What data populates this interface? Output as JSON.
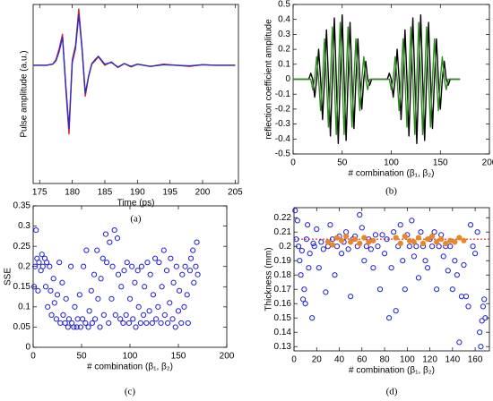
{
  "chart_data": [
    {
      "type": "line",
      "caption": "(a)",
      "x_label": "Time (ps)",
      "y_label": "Pulse amplitude (a.u.)",
      "xlim": [
        174,
        205.5
      ],
      "ylim": [
        -2.1,
        1.08
      ],
      "xticks": [
        175,
        180,
        185,
        190,
        195,
        200,
        205
      ],
      "x": [
        174,
        175,
        176,
        177,
        177.5,
        178,
        178.5,
        179,
        179.5,
        180,
        180.5,
        181,
        181.5,
        182,
        182.5,
        183,
        183.5,
        184,
        185,
        186,
        187,
        188,
        189,
        190,
        192,
        194,
        196,
        198,
        200,
        202,
        204,
        205
      ],
      "series": [
        {
          "color": "#d62728",
          "values": [
            0,
            0,
            0,
            0.02,
            0.1,
            0.3,
            0.55,
            -0.4,
            -1.22,
            0.1,
            0.35,
            1.0,
            0.3,
            -0.55,
            -0.2,
            0.02,
            0.08,
            0.15,
            0.0,
            0.06,
            -0.04,
            0.03,
            -0.03,
            0.02,
            -0.02,
            0.02,
            0,
            -0.02,
            0.01,
            0,
            0,
            0
          ]
        },
        {
          "color": "#2b2bc8",
          "values": [
            0,
            0,
            0,
            0.02,
            0.08,
            0.25,
            0.5,
            -0.35,
            -1.12,
            0.05,
            0.3,
            0.9,
            0.3,
            -0.5,
            -0.2,
            0.03,
            0.1,
            0.16,
            0.02,
            0.05,
            -0.03,
            0.03,
            -0.02,
            0.02,
            -0.02,
            0.01,
            0,
            -0.01,
            0.01,
            0,
            0,
            0
          ]
        }
      ]
    },
    {
      "type": "line",
      "caption": "(b)",
      "x_label": "# combination (β₁, β₂)",
      "y_label": "reflection coefficient amplitude",
      "xlim": [
        0,
        200
      ],
      "ylim": [
        -0.5,
        0.5
      ],
      "xticks": [
        0,
        50,
        100,
        150,
        200
      ],
      "yticks": [
        -0.5,
        -0.4,
        -0.3,
        -0.2,
        -0.1,
        0,
        0.1,
        0.2,
        0.3,
        0.4,
        0.5
      ],
      "x": [
        0,
        2,
        4,
        6,
        8,
        10,
        12,
        14,
        16,
        18,
        20,
        22,
        24,
        26,
        28,
        30,
        32,
        34,
        36,
        38,
        40,
        42,
        44,
        46,
        48,
        50,
        52,
        54,
        56,
        58,
        60,
        62,
        64,
        66,
        68,
        70,
        72,
        74,
        76,
        78,
        80,
        82,
        84,
        86,
        88,
        90,
        92,
        94,
        96,
        98,
        100,
        102,
        104,
        106,
        108,
        110,
        112,
        114,
        116,
        118,
        120,
        122,
        124,
        126,
        128,
        130,
        132,
        134,
        136,
        138,
        140,
        142,
        144,
        146,
        148,
        150,
        152,
        154,
        156,
        158,
        160,
        162,
        164,
        166,
        168,
        170
      ],
      "series": [
        {
          "color": "#000000",
          "values": [
            0,
            0,
            0,
            0,
            0,
            0,
            0,
            0,
            0,
            0.04,
            0,
            -0.12,
            0,
            0.2,
            0,
            -0.27,
            0,
            0.33,
            0,
            -0.38,
            0,
            0.41,
            0,
            -0.43,
            0,
            0.43,
            0,
            -0.41,
            0,
            0.38,
            0,
            -0.33,
            0,
            0.27,
            0,
            -0.2,
            0,
            0.12,
            0,
            -0.04,
            0,
            0,
            0,
            0,
            0,
            0,
            0,
            0,
            0,
            0.04,
            0,
            -0.12,
            0,
            0.2,
            0,
            -0.27,
            0,
            0.33,
            0,
            -0.38,
            0,
            0.41,
            0,
            -0.43,
            0,
            0.43,
            0,
            -0.41,
            0,
            0.38,
            0,
            -0.33,
            0,
            0.27,
            0,
            -0.2,
            0,
            0.12,
            0,
            -0.04,
            0,
            0,
            0,
            0,
            0,
            0
          ]
        },
        {
          "color": "#2e8b1e",
          "values": [
            0,
            0,
            0,
            0,
            0,
            0,
            0,
            0,
            0,
            0,
            -0.07,
            0,
            0.15,
            0,
            -0.21,
            0,
            0.27,
            0,
            -0.32,
            0,
            0.35,
            0,
            -0.37,
            0,
            0.38,
            0,
            -0.37,
            0,
            0.35,
            0,
            -0.32,
            0,
            0.27,
            0,
            -0.21,
            0,
            0.15,
            0,
            -0.07,
            0,
            0,
            0,
            0,
            0,
            0,
            0,
            0,
            0,
            0,
            0,
            -0.07,
            0,
            0.15,
            0,
            -0.21,
            0,
            0.27,
            0,
            -0.32,
            0,
            0.35,
            0,
            -0.37,
            0,
            0.38,
            0,
            -0.37,
            0,
            0.35,
            0,
            -0.32,
            0,
            0.27,
            0,
            -0.21,
            0,
            0.15,
            0,
            -0.07,
            0,
            0,
            0,
            0,
            0,
            0,
            0
          ]
        }
      ]
    },
    {
      "type": "scatter",
      "caption": "(c)",
      "x_label": "# combination (β₁, β₂)",
      "y_label": "SSE",
      "xlim": [
        0,
        200
      ],
      "ylim": [
        0,
        0.35
      ],
      "xticks": [
        0,
        50,
        100,
        150,
        200
      ],
      "yticks": [
        0,
        0.05,
        0.1,
        0.15,
        0.2,
        0.25,
        0.3,
        0.35
      ],
      "series": [
        {
          "color": "#1f1fd6",
          "x": [
            1,
            2,
            3,
            4,
            5,
            6,
            8,
            9,
            10,
            12,
            13,
            14,
            15,
            17,
            18,
            19,
            21,
            22,
            24,
            25,
            27,
            28,
            30,
            31,
            33,
            34,
            36,
            37,
            39,
            40,
            42,
            43,
            45,
            46,
            48,
            49,
            51,
            52,
            54,
            55,
            57,
            58,
            60,
            61,
            63,
            64,
            66,
            67,
            69,
            70,
            72,
            73,
            75,
            76,
            78,
            79,
            81,
            82,
            84,
            85,
            87,
            88,
            90,
            91,
            93,
            94,
            96,
            97,
            99,
            100,
            102,
            103,
            105,
            106,
            108,
            109,
            111,
            112,
            114,
            115,
            117,
            118,
            120,
            121,
            123,
            124,
            126,
            127,
            129,
            130,
            132,
            133,
            135,
            136,
            138,
            139,
            141,
            142,
            144,
            145,
            147,
            148,
            150,
            151,
            153,
            154,
            156,
            157,
            159,
            160,
            162,
            163,
            165,
            166,
            168,
            169,
            170
          ],
          "values": [
            0.15,
            0.2,
            0.29,
            0.22,
            0.14,
            0.21,
            0.19,
            0.23,
            0.2,
            0.22,
            0.15,
            0.21,
            0.1,
            0.2,
            0.14,
            0.08,
            0.17,
            0.11,
            0.07,
            0.13,
            0.21,
            0.06,
            0.16,
            0.08,
            0.06,
            0.12,
            0.05,
            0.07,
            0.2,
            0.06,
            0.05,
            0.1,
            0.05,
            0.07,
            0.13,
            0.05,
            0.07,
            0.2,
            0.06,
            0.24,
            0.05,
            0.09,
            0.14,
            0.06,
            0.18,
            0.07,
            0.24,
            0.12,
            0.05,
            0.17,
            0.22,
            0.08,
            0.28,
            0.21,
            0.06,
            0.26,
            0.12,
            0.2,
            0.29,
            0.08,
            0.27,
            0.18,
            0.07,
            0.15,
            0.06,
            0.19,
            0.08,
            0.21,
            0.06,
            0.12,
            0.2,
            0.07,
            0.16,
            0.05,
            0.19,
            0.1,
            0.06,
            0.2,
            0.08,
            0.15,
            0.06,
            0.21,
            0.09,
            0.18,
            0.06,
            0.13,
            0.22,
            0.07,
            0.1,
            0.21,
            0.06,
            0.15,
            0.24,
            0.08,
            0.19,
            0.06,
            0.11,
            0.22,
            0.07,
            0.16,
            0.05,
            0.2,
            0.09,
            0.14,
            0.06,
            0.18,
            0.1,
            0.2,
            0.13,
            0.06,
            0.19,
            0.22,
            0.24,
            0.16,
            0.2,
            0.26,
            0.18
          ]
        }
      ]
    },
    {
      "type": "scatter",
      "caption": "(d)",
      "x_label": "# combination (β₁, β₂)",
      "y_label": "Thickness (mm)",
      "xlim": [
        0,
        172.6
      ],
      "ylim": [
        0.127,
        0.227
      ],
      "xticks": [
        0,
        20,
        40,
        60,
        80,
        100,
        120,
        140,
        160
      ],
      "yticks": [
        0.13,
        0.14,
        0.15,
        0.16,
        0.17,
        0.18,
        0.19,
        0.2,
        0.21,
        0.22
      ],
      "reference_line": 0.205,
      "reference_color": "#e8291c",
      "series": [
        {
          "color": "#1f1fd6",
          "x": [
            1,
            2,
            3,
            4,
            5,
            6,
            7,
            8,
            9,
            10,
            11,
            12,
            13,
            14,
            16,
            17,
            18,
            20,
            22,
            24,
            26,
            28,
            30,
            32,
            34,
            36,
            38,
            40,
            42,
            44,
            46,
            48,
            50,
            52,
            54,
            56,
            58,
            60,
            62,
            64,
            66,
            68,
            70,
            72,
            74,
            76,
            78,
            80,
            82,
            84,
            86,
            88,
            90,
            92,
            94,
            96,
            98,
            100,
            102,
            104,
            106,
            108,
            110,
            112,
            114,
            116,
            118,
            120,
            122,
            124,
            126,
            128,
            130,
            132,
            134,
            136,
            138,
            140,
            142,
            144,
            146,
            148,
            150,
            152,
            154,
            156,
            158,
            160,
            162,
            164,
            165,
            166,
            167,
            168,
            169
          ],
          "values": [
            0.225,
            0.205,
            0.218,
            0.2,
            0.19,
            0.18,
            0.197,
            0.163,
            0.17,
            0.16,
            0.205,
            0.215,
            0.185,
            0.195,
            0.15,
            0.202,
            0.2,
            0.212,
            0.185,
            0.203,
            0.198,
            0.168,
            0.2,
            0.215,
            0.205,
            0.18,
            0.2,
            0.207,
            0.195,
            0.203,
            0.21,
            0.198,
            0.165,
            0.205,
            0.207,
            0.2,
            0.222,
            0.213,
            0.19,
            0.2,
            0.205,
            0.198,
            0.185,
            0.208,
            0.2,
            0.17,
            0.208,
            0.195,
            0.205,
            0.15,
            0.185,
            0.21,
            0.155,
            0.2,
            0.215,
            0.19,
            0.17,
            0.208,
            0.2,
            0.218,
            0.193,
            0.2,
            0.178,
            0.21,
            0.2,
            0.19,
            0.185,
            0.205,
            0.2,
            0.21,
            0.17,
            0.2,
            0.208,
            0.193,
            0.2,
            0.183,
            0.2,
            0.17,
            0.19,
            0.18,
            0.133,
            0.165,
            0.187,
            0.165,
            0.158,
            0.215,
            0.2,
            0.195,
            0.21,
            0.14,
            0.13,
            0.148,
            0.158,
            0.163,
            0.15
          ]
        },
        {
          "color": "#e8862a",
          "x": [
            30,
            34,
            38,
            42,
            46,
            50,
            54,
            58,
            62,
            66,
            70,
            90,
            94,
            98,
            102,
            106,
            110,
            114,
            118,
            122,
            126,
            130,
            134,
            138,
            142,
            146,
            150
          ],
          "values": [
            0.203,
            0.201,
            0.206,
            0.204,
            0.207,
            0.203,
            0.205,
            0.202,
            0.206,
            0.203,
            0.204,
            0.206,
            0.202,
            0.207,
            0.204,
            0.203,
            0.206,
            0.202,
            0.205,
            0.207,
            0.203,
            0.205,
            0.202,
            0.204,
            0.203,
            0.206,
            0.204
          ]
        }
      ]
    }
  ]
}
